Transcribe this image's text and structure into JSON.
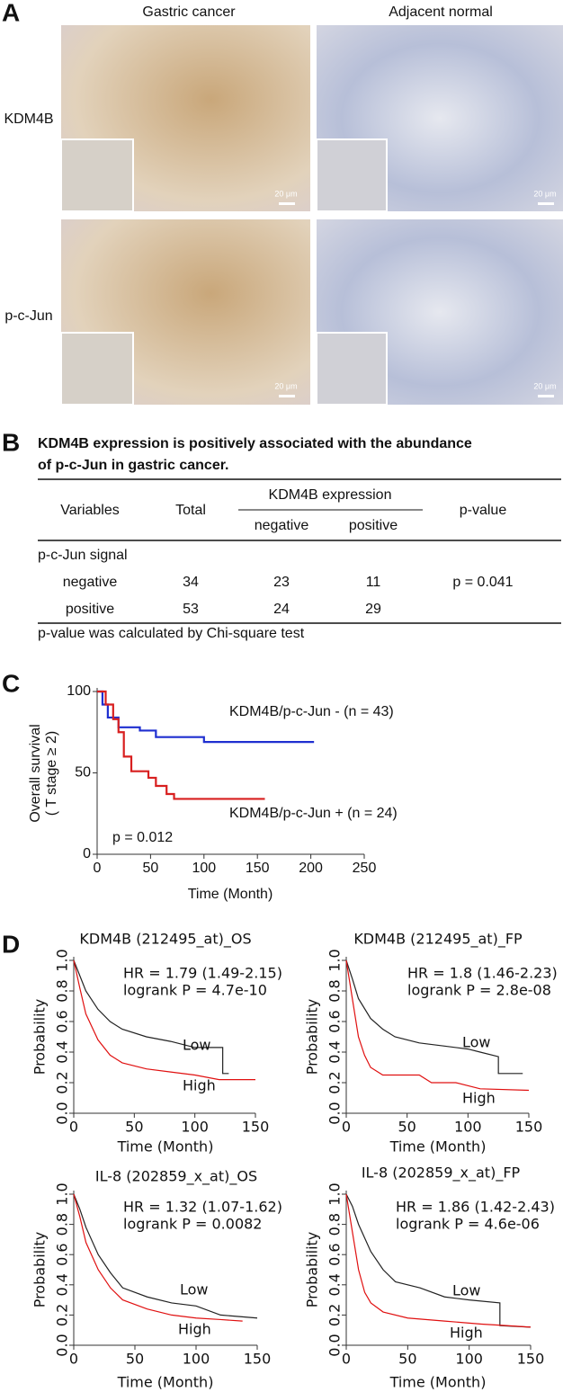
{
  "panel_a": {
    "label": "A",
    "columns": [
      "Gastric cancer",
      "Adjacent normal"
    ],
    "rows": [
      "KDM4B",
      "p-c-Jun"
    ],
    "scale_bar": "20 μm"
  },
  "panel_b": {
    "label": "B",
    "title": [
      "KDM4B expression is positively associated with the abundance",
      "of p-c-Jun in gastric cancer."
    ],
    "table": {
      "header": {
        "variables": "Variables",
        "total": "Total",
        "group": "KDM4B expression",
        "negative": "negative",
        "positive": "positive",
        "p": "p-value"
      },
      "section": "p-c-Jun signal",
      "rows": [
        [
          "negative",
          "34",
          "23",
          "11",
          "p = 0.041"
        ],
        [
          "positive",
          "53",
          "24",
          "29"
        ]
      ]
    },
    "footnote": "p-value was calculated by Chi-square test"
  },
  "panel_c": {
    "label": "C"
  },
  "panel_d": {
    "label": "D"
  },
  "chart_data": [
    {
      "type": "line",
      "xlabel": "Time (Month)",
      "ylabel": [
        "Overall survival",
        "( T stage ≥ 2)"
      ],
      "annotations": [
        "p = 0.012"
      ],
      "xlim": [
        0,
        250
      ],
      "xticks": [
        0,
        50,
        100,
        150,
        200,
        250
      ],
      "ylim": [
        0,
        100
      ],
      "yticks": [
        0,
        50,
        100
      ],
      "series": [
        {
          "name": "KDM4B/p-c-Jun - (n = 43)",
          "color": "#1f2fd0",
          "x": [
            0,
            5,
            5,
            10,
            10,
            20,
            20,
            40,
            40,
            55,
            55,
            100,
            100,
            203
          ],
          "values": [
            100,
            100,
            92,
            92,
            84,
            84,
            78,
            78,
            76,
            76,
            72,
            72,
            69,
            69
          ]
        },
        {
          "name": "KDM4B/p-c-Jun + (n = 24)",
          "color": "#d81f1f",
          "x": [
            0,
            8,
            8,
            15,
            15,
            20,
            20,
            25,
            25,
            32,
            32,
            48,
            48,
            55,
            55,
            65,
            65,
            72,
            72,
            157
          ],
          "values": [
            100,
            100,
            92,
            92,
            83,
            83,
            75,
            75,
            60,
            60,
            51,
            51,
            47,
            47,
            42,
            42,
            37,
            37,
            34,
            34
          ]
        }
      ]
    },
    {
      "type": "line",
      "title": "KDM4B (212495_at)_OS",
      "xlabel": "Time (Month)",
      "ylabel": [
        "Probability"
      ],
      "annotations": [
        "HR = 1.79 (1.49-2.15)",
        "logrank P = 4.7e-10"
      ],
      "xlim": [
        0,
        150
      ],
      "xticks": [
        0,
        50,
        100,
        150
      ],
      "ylim": [
        0,
        1
      ],
      "yticks": [
        {
          "value": 0,
          "label": "0.0"
        },
        0.2,
        0.4,
        0.6,
        0.8,
        {
          "value": 1,
          "label": "1.0"
        }
      ],
      "series": [
        {
          "name": "Low",
          "color": "#222222",
          "x": [
            0,
            5,
            10,
            20,
            30,
            40,
            60,
            80,
            100,
            123,
            123,
            128
          ],
          "values": [
            1,
            0.9,
            0.8,
            0.68,
            0.6,
            0.55,
            0.5,
            0.47,
            0.43,
            0.43,
            0.26,
            0.26
          ]
        },
        {
          "name": "High",
          "color": "#e01010",
          "x": [
            0,
            5,
            10,
            20,
            30,
            40,
            60,
            80,
            100,
            120,
            150
          ],
          "values": [
            1,
            0.82,
            0.65,
            0.48,
            0.38,
            0.33,
            0.29,
            0.27,
            0.25,
            0.22,
            0.22
          ]
        }
      ]
    },
    {
      "type": "line",
      "title": "KDM4B (212495_at)_FP",
      "xlabel": "Time (Month)",
      "ylabel": [
        "Probability"
      ],
      "annotations": [
        "HR = 1.8 (1.46-2.23)",
        "logrank P = 2.8e-08"
      ],
      "xlim": [
        0,
        150
      ],
      "xticks": [
        0,
        50,
        100,
        150
      ],
      "ylim": [
        0,
        1
      ],
      "yticks": [
        {
          "value": 0,
          "label": "0.0"
        },
        0.2,
        0.4,
        0.6,
        0.8,
        {
          "value": 1,
          "label": "1.0"
        }
      ],
      "series": [
        {
          "name": "Low",
          "color": "#222222",
          "x": [
            0,
            5,
            10,
            20,
            30,
            40,
            60,
            80,
            100,
            110,
            125,
            125,
            145
          ],
          "values": [
            1,
            0.88,
            0.75,
            0.62,
            0.55,
            0.5,
            0.46,
            0.44,
            0.42,
            0.4,
            0.37,
            0.26,
            0.26
          ]
        },
        {
          "name": "High",
          "color": "#e01010",
          "x": [
            0,
            5,
            10,
            15,
            20,
            30,
            60,
            70,
            90,
            110,
            150
          ],
          "values": [
            1,
            0.75,
            0.5,
            0.38,
            0.3,
            0.25,
            0.25,
            0.2,
            0.2,
            0.16,
            0.15
          ]
        }
      ]
    },
    {
      "type": "line",
      "title": "IL-8 (202859_x_at)_OS",
      "xlabel": "Time (Month)",
      "ylabel": [
        "Probability"
      ],
      "annotations": [
        "HR = 1.32 (1.07-1.62)",
        "logrank P = 0.0082"
      ],
      "xlim": [
        0,
        150
      ],
      "xticks": [
        0,
        50,
        100,
        150
      ],
      "ylim": [
        0,
        1
      ],
      "yticks": [
        {
          "value": 0,
          "label": "0.0"
        },
        0.2,
        0.4,
        0.6,
        0.8,
        {
          "value": 1,
          "label": "1.0"
        }
      ],
      "series": [
        {
          "name": "Low",
          "color": "#222222",
          "x": [
            0,
            5,
            10,
            20,
            30,
            40,
            60,
            80,
            100,
            120,
            150
          ],
          "values": [
            1,
            0.9,
            0.78,
            0.6,
            0.48,
            0.38,
            0.32,
            0.28,
            0.26,
            0.2,
            0.18
          ]
        },
        {
          "name": "High",
          "color": "#e01010",
          "x": [
            0,
            5,
            10,
            20,
            30,
            40,
            60,
            80,
            100,
            120,
            138
          ],
          "values": [
            1,
            0.85,
            0.68,
            0.5,
            0.38,
            0.3,
            0.24,
            0.2,
            0.18,
            0.17,
            0.16
          ]
        }
      ]
    },
    {
      "type": "line",
      "title": "IL-8 (202859_x_at)_FP",
      "xlabel": "Time (Month)",
      "ylabel": [
        "Probability"
      ],
      "annotations": [
        "HR = 1.86 (1.42-2.43)",
        "logrank P = 4.6e-06"
      ],
      "xlim": [
        0,
        150
      ],
      "xticks": [
        0,
        50,
        100,
        150
      ],
      "ylim": [
        0,
        1
      ],
      "yticks": [
        {
          "value": 0,
          "label": "0.0"
        },
        0.2,
        0.4,
        0.6,
        0.8,
        {
          "value": 1,
          "label": "1.0"
        }
      ],
      "series": [
        {
          "name": "Low",
          "color": "#222222",
          "x": [
            0,
            5,
            10,
            20,
            30,
            40,
            60,
            80,
            100,
            125,
            125,
            150
          ],
          "values": [
            1,
            0.92,
            0.8,
            0.62,
            0.5,
            0.42,
            0.38,
            0.32,
            0.3,
            0.28,
            0.13,
            0.12
          ]
        },
        {
          "name": "High",
          "color": "#e01010",
          "x": [
            0,
            5,
            10,
            15,
            20,
            30,
            50,
            80,
            110,
            130,
            150
          ],
          "values": [
            1,
            0.75,
            0.5,
            0.35,
            0.28,
            0.22,
            0.18,
            0.16,
            0.14,
            0.13,
            0.12
          ]
        }
      ]
    }
  ]
}
